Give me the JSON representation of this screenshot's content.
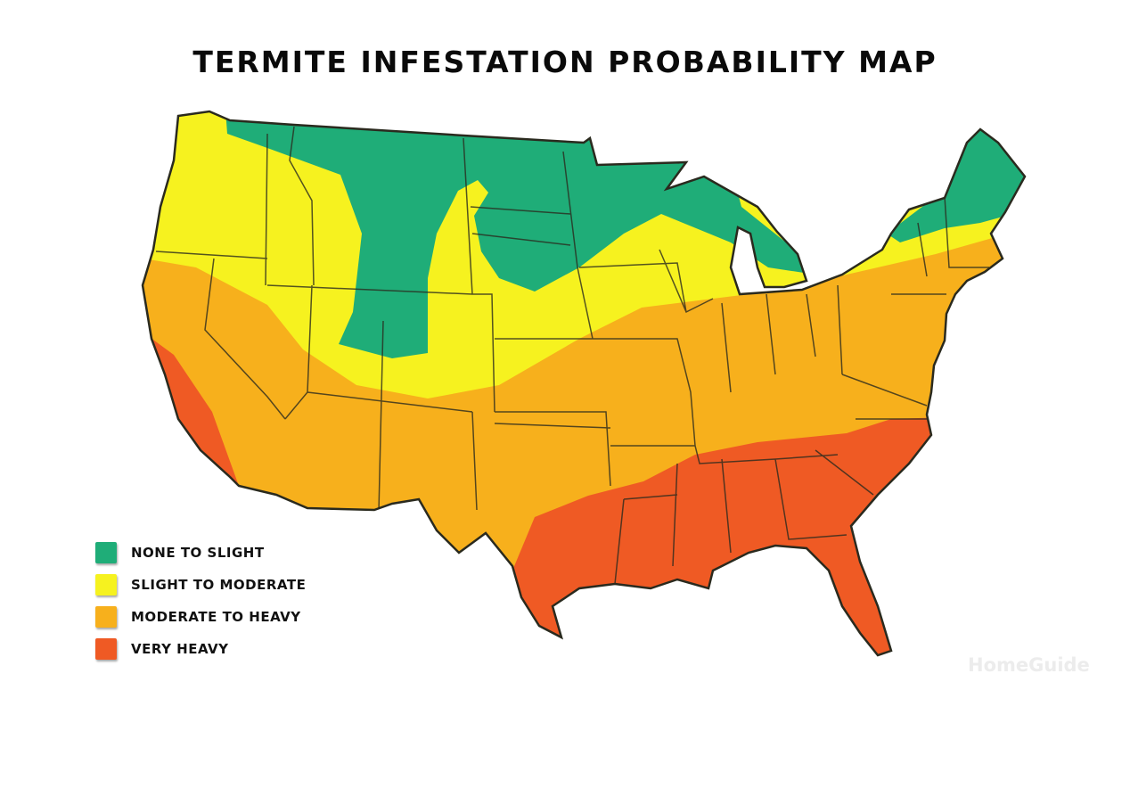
{
  "title": "TERMITE INFESTATION PROBABILITY MAP",
  "legend": [
    {
      "label": "NONE TO SLIGHT",
      "color": "#1fad78"
    },
    {
      "label": "SLIGHT TO MODERATE",
      "color": "#f6f21f"
    },
    {
      "label": "MODERATE TO HEAVY",
      "color": "#f7b01c"
    },
    {
      "label": "VERY HEAVY",
      "color": "#ef5a24"
    }
  ],
  "watermark": "HomeGuide",
  "colors": {
    "border": "#2a2a1e"
  }
}
